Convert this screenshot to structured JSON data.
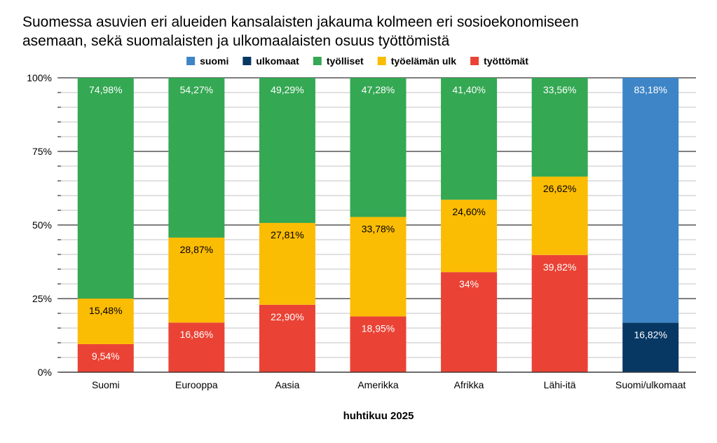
{
  "chart_data": {
    "type": "bar",
    "stacked": true,
    "title_lines": [
      "Suomessa asuvien eri alueiden kansalaisten jakauma kolmeen eri sosioekonomiseen",
      "asemaan, sekä suomalaisten ja ulkomaalaisten osuus työttömistä"
    ],
    "xlabel": "huhtikuu 2025",
    "ylabel": "",
    "ylim": [
      0,
      100
    ],
    "y_ticks": [
      "0%",
      "25%",
      "50%",
      "75%",
      "100%"
    ],
    "legend_position": "top",
    "categories": [
      "Suomi",
      "Eurooppa",
      "Aasia",
      "Amerikka",
      "Afrikka",
      "Lähi-itä",
      "Suomi/ulkomaat"
    ],
    "series": [
      {
        "name": "suomi",
        "color": "#3d85c6",
        "text_color": "#ffffff",
        "values": [
          null,
          null,
          null,
          null,
          null,
          null,
          83.18
        ],
        "labels": [
          "",
          "",
          "",
          "",
          "",
          "",
          "83,18%"
        ]
      },
      {
        "name": "ulkomaat",
        "color": "#073763",
        "text_color": "#ffffff",
        "values": [
          null,
          null,
          null,
          null,
          null,
          null,
          16.82
        ],
        "labels": [
          "",
          "",
          "",
          "",
          "",
          "",
          "16,82%"
        ]
      },
      {
        "name": "työlliset",
        "color": "#34a853",
        "text_color": "#ffffff",
        "values": [
          74.98,
          54.27,
          49.29,
          47.28,
          41.4,
          33.56,
          null
        ],
        "labels": [
          "74,98%",
          "54,27%",
          "49,29%",
          "47,28%",
          "41,40%",
          "33,56%",
          ""
        ]
      },
      {
        "name": "työelämän ulk",
        "color": "#fbbc04",
        "text_color": "#000000",
        "values": [
          15.48,
          28.87,
          27.81,
          33.78,
          24.6,
          26.62,
          null
        ],
        "labels": [
          "15,48%",
          "28,87%",
          "27,81%",
          "33,78%",
          "24,60%",
          "26,62%",
          ""
        ]
      },
      {
        "name": "työttömät",
        "color": "#ea4335",
        "text_color": "#ffffff",
        "values": [
          9.54,
          16.86,
          22.9,
          18.95,
          34,
          39.82,
          null
        ],
        "labels": [
          "9,54%",
          "16,86%",
          "22,90%",
          "18,95%",
          "34%",
          "39,82%",
          ""
        ]
      }
    ],
    "stack_order_bottom_to_top": [
      "ulkomaat",
      "suomi",
      "työttömät",
      "työelämän ulk",
      "työlliset"
    ]
  }
}
